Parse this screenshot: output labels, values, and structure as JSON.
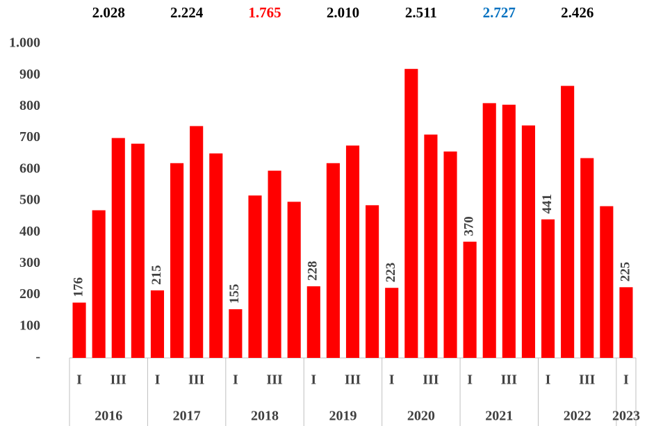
{
  "chart_data": {
    "type": "bar",
    "categories": [
      "I",
      null,
      "III",
      null,
      "I",
      null,
      "III",
      null,
      "I",
      null,
      "III",
      null,
      "I",
      null,
      "III",
      null,
      "I",
      null,
      "III",
      null,
      "I",
      null,
      "III",
      null,
      "I",
      null,
      "III",
      null,
      "I"
    ],
    "years": [
      "2016",
      "2017",
      "2018",
      "2019",
      "2020",
      "2021",
      "2022",
      "2023"
    ],
    "values": [
      176,
      470,
      700,
      682,
      215,
      620,
      738,
      651,
      155,
      517,
      596,
      497,
      228,
      620,
      676,
      486,
      223,
      920,
      711,
      657,
      370,
      811,
      806,
      740,
      441,
      866,
      636,
      483,
      225
    ],
    "value_labels": [
      "176",
      null,
      null,
      null,
      "215",
      null,
      null,
      null,
      "155",
      null,
      null,
      null,
      "228",
      null,
      null,
      null,
      "223",
      null,
      null,
      null,
      "370",
      null,
      null,
      null,
      "441",
      null,
      null,
      null,
      "225"
    ],
    "color": "#ff0000",
    "totals": [
      {
        "value": 2028,
        "label": "2.028",
        "color": "#000000"
      },
      {
        "value": 2224,
        "label": "2.224",
        "color": "#000000"
      },
      {
        "value": 1765,
        "label": "1.765",
        "color": "#ff0000"
      },
      {
        "value": 2010,
        "label": "2.010",
        "color": "#000000"
      },
      {
        "value": 2511,
        "label": "2.511",
        "color": "#000000"
      },
      {
        "value": 2727,
        "label": "2.727",
        "color": "#0070c0"
      },
      {
        "value": 2426,
        "label": "2.426",
        "color": "#000000"
      }
    ],
    "ylim": [
      0,
      1000
    ],
    "yticks": [
      {
        "value": 0,
        "label": "-"
      },
      100,
      200,
      300,
      400,
      500,
      600,
      700,
      800,
      900,
      {
        "value": 1000,
        "label": "1.000"
      }
    ],
    "grid": false
  }
}
